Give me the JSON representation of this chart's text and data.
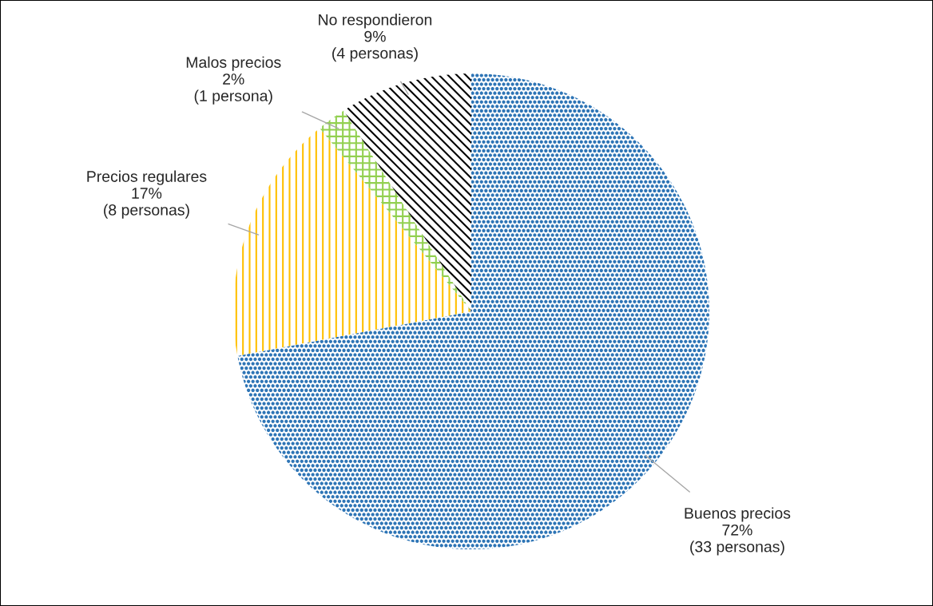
{
  "chart_data": {
    "type": "pie",
    "categories": [
      "Buenos precios",
      "Precios regulares",
      "Malos precios",
      "No respondieron"
    ],
    "values": [
      72,
      17,
      2,
      9
    ],
    "value_labels": [
      "72%\n(33 personas)",
      "17%\n(8 personas)",
      "2%\n(1 persona)",
      "9%\n(4 personas)"
    ],
    "colors": [
      "#2e75b6",
      "#ffc000",
      "#92d050",
      "#000000"
    ],
    "legend": false
  }
}
